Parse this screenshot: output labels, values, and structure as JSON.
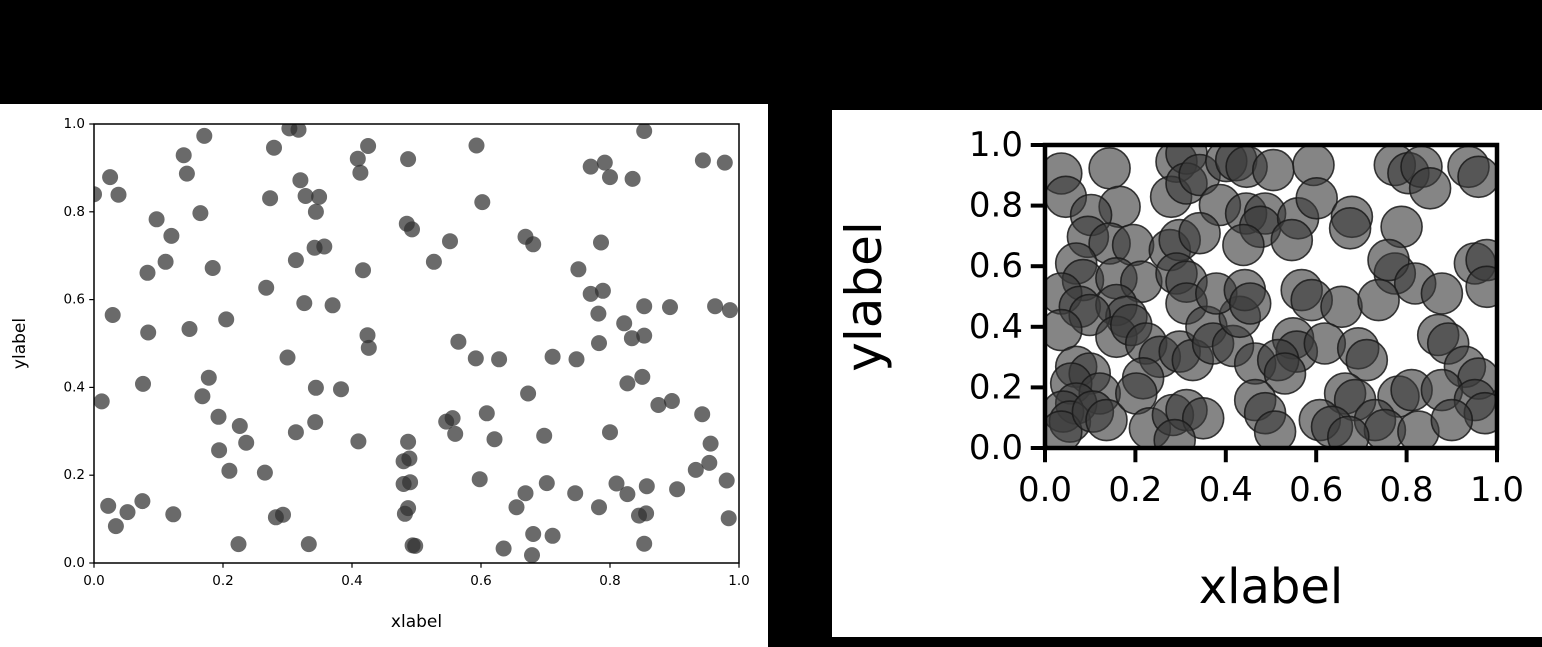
{
  "canvas": {
    "background": "#000000",
    "panel_background": "#ffffff"
  },
  "chart_data": [
    {
      "type": "scatter",
      "title": "",
      "xlabel": "xlabel",
      "ylabel": "ylabel",
      "xlim": [
        0.0,
        1.0
      ],
      "ylim": [
        0.0,
        1.0
      ],
      "grid": false,
      "legend": null,
      "xticks": [
        0.0,
        0.2,
        0.4,
        0.6,
        0.8,
        1.0
      ],
      "yticks": [
        0.0,
        0.2,
        0.4,
        0.6,
        0.8,
        1.0
      ],
      "xtick_labels": [
        "0.0",
        "0.2",
        "0.4",
        "0.6",
        "0.8",
        "1.0"
      ],
      "ytick_labels": [
        "0.0",
        "0.2",
        "0.4",
        "0.6",
        "0.8",
        "1.0"
      ],
      "marker": {
        "radius_px": 8,
        "fill": "#313131",
        "alpha": 0.72,
        "edge": "none",
        "edge_width": 0
      },
      "points": [
        [
          0.171,
          0.973
        ],
        [
          0.303,
          0.99
        ],
        [
          0.317,
          0.987
        ],
        [
          0.139,
          0.929
        ],
        [
          0.279,
          0.946
        ],
        [
          0.425,
          0.95
        ],
        [
          0.409,
          0.921
        ],
        [
          0.487,
          0.92
        ],
        [
          0.144,
          0.887
        ],
        [
          0.413,
          0.889
        ],
        [
          0.025,
          0.879
        ],
        [
          0.32,
          0.872
        ],
        [
          0.0,
          0.84
        ],
        [
          0.038,
          0.839
        ],
        [
          0.328,
          0.836
        ],
        [
          0.349,
          0.834
        ],
        [
          0.273,
          0.831
        ],
        [
          0.344,
          0.8
        ],
        [
          0.165,
          0.797
        ],
        [
          0.097,
          0.783
        ],
        [
          0.485,
          0.773
        ],
        [
          0.493,
          0.76
        ],
        [
          0.12,
          0.745
        ],
        [
          0.342,
          0.718
        ],
        [
          0.357,
          0.721
        ],
        [
          0.313,
          0.69
        ],
        [
          0.111,
          0.686
        ],
        [
          0.184,
          0.672
        ],
        [
          0.083,
          0.661
        ],
        [
          0.417,
          0.667
        ],
        [
          0.267,
          0.627
        ],
        [
          0.326,
          0.592
        ],
        [
          0.37,
          0.587
        ],
        [
          0.029,
          0.565
        ],
        [
          0.084,
          0.525
        ],
        [
          0.148,
          0.533
        ],
        [
          0.205,
          0.555
        ],
        [
          0.424,
          0.519
        ],
        [
          0.426,
          0.49
        ],
        [
          0.853,
          0.984
        ],
        [
          0.593,
          0.951
        ],
        [
          0.944,
          0.917
        ],
        [
          0.978,
          0.912
        ],
        [
          0.77,
          0.903
        ],
        [
          0.792,
          0.912
        ],
        [
          0.8,
          0.879
        ],
        [
          0.835,
          0.875
        ],
        [
          0.602,
          0.822
        ],
        [
          0.552,
          0.733
        ],
        [
          0.669,
          0.743
        ],
        [
          0.681,
          0.726
        ],
        [
          0.527,
          0.686
        ],
        [
          0.786,
          0.73
        ],
        [
          0.751,
          0.669
        ],
        [
          0.77,
          0.613
        ],
        [
          0.789,
          0.62
        ],
        [
          0.782,
          0.568
        ],
        [
          0.853,
          0.585
        ],
        [
          0.893,
          0.583
        ],
        [
          0.963,
          0.585
        ],
        [
          0.986,
          0.576
        ],
        [
          0.822,
          0.546
        ],
        [
          0.834,
          0.512
        ],
        [
          0.853,
          0.518
        ],
        [
          0.783,
          0.501
        ],
        [
          0.565,
          0.504
        ],
        [
          0.3,
          0.468
        ],
        [
          0.076,
          0.408
        ],
        [
          0.178,
          0.422
        ],
        [
          0.168,
          0.38
        ],
        [
          0.012,
          0.368
        ],
        [
          0.344,
          0.399
        ],
        [
          0.383,
          0.396
        ],
        [
          0.193,
          0.333
        ],
        [
          0.226,
          0.312
        ],
        [
          0.343,
          0.321
        ],
        [
          0.313,
          0.298
        ],
        [
          0.236,
          0.274
        ],
        [
          0.194,
          0.257
        ],
        [
          0.21,
          0.21
        ],
        [
          0.265,
          0.206
        ],
        [
          0.41,
          0.277
        ],
        [
          0.487,
          0.276
        ],
        [
          0.48,
          0.232
        ],
        [
          0.489,
          0.238
        ],
        [
          0.48,
          0.18
        ],
        [
          0.49,
          0.184
        ],
        [
          0.487,
          0.125
        ],
        [
          0.482,
          0.112
        ],
        [
          0.494,
          0.04
        ],
        [
          0.022,
          0.13
        ],
        [
          0.052,
          0.116
        ],
        [
          0.075,
          0.141
        ],
        [
          0.034,
          0.084
        ],
        [
          0.123,
          0.111
        ],
        [
          0.224,
          0.043
        ],
        [
          0.333,
          0.043
        ],
        [
          0.282,
          0.104
        ],
        [
          0.293,
          0.11
        ],
        [
          0.592,
          0.466
        ],
        [
          0.628,
          0.464
        ],
        [
          0.711,
          0.47
        ],
        [
          0.748,
          0.464
        ],
        [
          0.673,
          0.386
        ],
        [
          0.827,
          0.409
        ],
        [
          0.85,
          0.424
        ],
        [
          0.875,
          0.36
        ],
        [
          0.896,
          0.369
        ],
        [
          0.943,
          0.339
        ],
        [
          0.556,
          0.33
        ],
        [
          0.546,
          0.322
        ],
        [
          0.609,
          0.341
        ],
        [
          0.621,
          0.282
        ],
        [
          0.698,
          0.29
        ],
        [
          0.8,
          0.298
        ],
        [
          0.56,
          0.294
        ],
        [
          0.956,
          0.272
        ],
        [
          0.933,
          0.212
        ],
        [
          0.954,
          0.228
        ],
        [
          0.598,
          0.191
        ],
        [
          0.669,
          0.159
        ],
        [
          0.655,
          0.127
        ],
        [
          0.702,
          0.182
        ],
        [
          0.746,
          0.159
        ],
        [
          0.783,
          0.127
        ],
        [
          0.81,
          0.181
        ],
        [
          0.827,
          0.157
        ],
        [
          0.845,
          0.108
        ],
        [
          0.856,
          0.113
        ],
        [
          0.857,
          0.175
        ],
        [
          0.904,
          0.168
        ],
        [
          0.981,
          0.188
        ],
        [
          0.984,
          0.102
        ],
        [
          0.635,
          0.033
        ],
        [
          0.681,
          0.066
        ],
        [
          0.711,
          0.062
        ],
        [
          0.679,
          0.018
        ],
        [
          0.853,
          0.044
        ],
        [
          0.498,
          0.039
        ]
      ]
    },
    {
      "type": "scatter",
      "title": "",
      "xlabel": "xlabel",
      "ylabel": "ylabel",
      "xlim": [
        0.0,
        1.0
      ],
      "ylim": [
        0.0,
        1.0
      ],
      "grid": false,
      "legend": null,
      "xticks": [
        0.0,
        0.2,
        0.4,
        0.6,
        0.8,
        1.0
      ],
      "yticks": [
        0.0,
        0.2,
        0.4,
        0.6,
        0.8,
        1.0
      ],
      "xtick_labels": [
        "0.0",
        "0.2",
        "0.4",
        "0.6",
        "0.8",
        "1.0"
      ],
      "ytick_labels": [
        "0.0",
        "0.2",
        "0.4",
        "0.6",
        "0.8",
        "1.0"
      ],
      "marker": {
        "radius_px": 20.5,
        "fill": "#3a3a3a",
        "alpha": 0.62,
        "edge": "#1a1a1a",
        "edge_width": 1.6
      },
      "points": [
        [
          0.036,
          0.906
        ],
        [
          0.046,
          0.829
        ],
        [
          0.143,
          0.923
        ],
        [
          0.165,
          0.796
        ],
        [
          0.102,
          0.769
        ],
        [
          0.291,
          0.945
        ],
        [
          0.313,
          0.972
        ],
        [
          0.279,
          0.829
        ],
        [
          0.313,
          0.873
        ],
        [
          0.342,
          0.901
        ],
        [
          0.401,
          0.947
        ],
        [
          0.423,
          0.95
        ],
        [
          0.387,
          0.802
        ],
        [
          0.445,
          0.774
        ],
        [
          0.095,
          0.697
        ],
        [
          0.143,
          0.675
        ],
        [
          0.195,
          0.67
        ],
        [
          0.276,
          0.653
        ],
        [
          0.298,
          0.686
        ],
        [
          0.342,
          0.709
        ],
        [
          0.069,
          0.609
        ],
        [
          0.084,
          0.554
        ],
        [
          0.158,
          0.56
        ],
        [
          0.213,
          0.549
        ],
        [
          0.291,
          0.576
        ],
        [
          0.313,
          0.549
        ],
        [
          0.036,
          0.51
        ],
        [
          0.077,
          0.466
        ],
        [
          0.158,
          0.472
        ],
        [
          0.18,
          0.433
        ],
        [
          0.099,
          0.439
        ],
        [
          0.313,
          0.477
        ],
        [
          0.036,
          0.389
        ],
        [
          0.158,
          0.367
        ],
        [
          0.191,
          0.406
        ],
        [
          0.224,
          0.345
        ],
        [
          0.254,
          0.301
        ],
        [
          0.298,
          0.318
        ],
        [
          0.327,
          0.29
        ],
        [
          0.069,
          0.268
        ],
        [
          0.099,
          0.246
        ],
        [
          0.058,
          0.213
        ],
        [
          0.121,
          0.18
        ],
        [
          0.069,
          0.147
        ],
        [
          0.04,
          0.12
        ],
        [
          0.055,
          0.087
        ],
        [
          0.036,
          0.054
        ],
        [
          0.106,
          0.12
        ],
        [
          0.136,
          0.092
        ],
        [
          0.217,
          0.23
        ],
        [
          0.202,
          0.18
        ],
        [
          0.232,
          0.065
        ],
        [
          0.283,
          0.109
        ],
        [
          0.313,
          0.125
        ],
        [
          0.35,
          0.098
        ],
        [
          0.287,
          0.026
        ],
        [
          0.357,
          0.4
        ],
        [
          0.372,
          0.345
        ],
        [
          0.416,
          0.337
        ],
        [
          0.431,
          0.433
        ],
        [
          0.379,
          0.51
        ],
        [
          0.446,
          0.928
        ],
        [
          0.505,
          0.917
        ],
        [
          0.594,
          0.934
        ],
        [
          0.774,
          0.934
        ],
        [
          0.804,
          0.907
        ],
        [
          0.833,
          0.928
        ],
        [
          0.852,
          0.857
        ],
        [
          0.937,
          0.928
        ],
        [
          0.959,
          0.895
        ],
        [
          0.487,
          0.774
        ],
        [
          0.476,
          0.73
        ],
        [
          0.56,
          0.758
        ],
        [
          0.546,
          0.686
        ],
        [
          0.601,
          0.824
        ],
        [
          0.679,
          0.763
        ],
        [
          0.675,
          0.725
        ],
        [
          0.789,
          0.73
        ],
        [
          0.439,
          0.67
        ],
        [
          0.774,
          0.576
        ],
        [
          0.76,
          0.62
        ],
        [
          0.819,
          0.543
        ],
        [
          0.878,
          0.51
        ],
        [
          0.951,
          0.609
        ],
        [
          0.977,
          0.62
        ],
        [
          0.977,
          0.532
        ],
        [
          0.442,
          0.521
        ],
        [
          0.454,
          0.477
        ],
        [
          0.568,
          0.521
        ],
        [
          0.59,
          0.488
        ],
        [
          0.656,
          0.466
        ],
        [
          0.738,
          0.488
        ],
        [
          0.87,
          0.373
        ],
        [
          0.892,
          0.345
        ],
        [
          0.929,
          0.268
        ],
        [
          0.959,
          0.229
        ],
        [
          0.549,
          0.362
        ],
        [
          0.557,
          0.318
        ],
        [
          0.619,
          0.345
        ],
        [
          0.693,
          0.329
        ],
        [
          0.712,
          0.29
        ],
        [
          0.465,
          0.279
        ],
        [
          0.516,
          0.29
        ],
        [
          0.531,
          0.246
        ],
        [
          0.664,
          0.18
        ],
        [
          0.686,
          0.158
        ],
        [
          0.782,
          0.17
        ],
        [
          0.811,
          0.191
        ],
        [
          0.878,
          0.191
        ],
        [
          0.951,
          0.158
        ],
        [
          0.973,
          0.115
        ],
        [
          0.465,
          0.158
        ],
        [
          0.487,
          0.115
        ],
        [
          0.608,
          0.092
        ],
        [
          0.635,
          0.07
        ],
        [
          0.73,
          0.092
        ],
        [
          0.752,
          0.059
        ],
        [
          0.826,
          0.054
        ],
        [
          0.9,
          0.092
        ],
        [
          0.509,
          0.054
        ],
        [
          0.671,
          0.037
        ]
      ]
    }
  ]
}
